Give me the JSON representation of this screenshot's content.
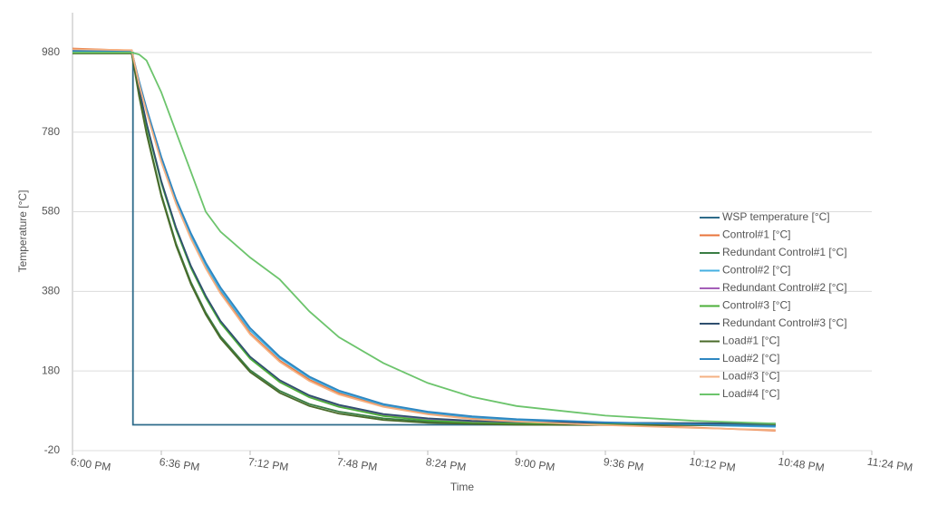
{
  "chart_data": {
    "type": "line",
    "y_label": "Temperature [°C]",
    "x_label": "Time",
    "x": [
      0,
      24,
      27,
      30,
      36,
      42,
      48,
      54,
      60,
      72,
      84,
      96,
      108,
      126,
      144,
      162,
      180,
      216,
      252,
      285
    ],
    "xlim": [
      0,
      324
    ],
    "xticks": [
      {
        "value": 0,
        "label": "6:00 PM"
      },
      {
        "value": 36,
        "label": "6:36 PM"
      },
      {
        "value": 72,
        "label": "7:12 PM"
      },
      {
        "value": 108,
        "label": "7:48 PM"
      },
      {
        "value": 144,
        "label": "8:24 PM"
      },
      {
        "value": 180,
        "label": "9:00 PM"
      },
      {
        "value": 216,
        "label": "9:36 PM"
      },
      {
        "value": 252,
        "label": "10:12 PM"
      },
      {
        "value": 288,
        "label": "10:48 PM"
      },
      {
        "value": 324,
        "label": "11:24 PM"
      }
    ],
    "ylim": [
      -20,
      1080
    ],
    "yticks": [
      -20,
      180,
      380,
      580,
      780,
      980
    ],
    "grid": true,
    "legend": "right",
    "series": [
      {
        "name": "WSP temperature [°C]",
        "color": "#2e6b8a",
        "x": [
          0,
          24.5,
          24.5,
          285
        ],
        "values": [
          980,
          980,
          45,
          45
        ]
      },
      {
        "name": "Control#1 [°C]",
        "color": "#e8743b",
        "values": [
          990,
          985,
          903,
          833,
          709,
          603,
          515,
          441,
          378,
          275,
          206,
          158,
          124,
          92,
          73,
          61,
          55,
          45,
          38,
          30
        ]
      },
      {
        "name": "Redundant Control#1 [°C]",
        "color": "#3a7d44",
        "values": [
          985,
          985,
          874,
          781,
          624,
          500,
          403,
          327,
          267,
          182,
          130,
          97,
          78,
          61,
          53,
          49,
          47,
          45,
          44,
          43
        ]
      },
      {
        "name": "Control#2 [°C]",
        "color": "#45b0e1",
        "values": [
          982,
          982,
          905,
          836,
          712,
          607,
          520,
          446,
          384,
          282,
          212,
          163,
          128,
          95,
          76,
          64,
          57,
          49,
          44,
          40
        ]
      },
      {
        "name": "Redundant Control#2 [°C]",
        "color": "#a45eb8",
        "values": [
          982,
          982,
          886,
          800,
          654,
          537,
          441,
          366,
          303,
          213,
          154,
          116,
          92,
          69,
          58,
          52,
          49,
          47,
          46,
          45
        ]
      },
      {
        "name": "Control#3 [°C]",
        "color": "#4caf3a",
        "values": [
          978,
          978,
          884,
          798,
          652,
          535,
          439,
          364,
          301,
          211,
          152,
          114,
          90,
          67,
          56,
          50,
          48,
          47,
          47,
          47
        ]
      },
      {
        "name": "Redundant Control#3 [°C]",
        "color": "#2f4f6f",
        "values": [
          985,
          985,
          889,
          803,
          657,
          540,
          444,
          369,
          306,
          216,
          157,
          119,
          95,
          72,
          61,
          55,
          52,
          50,
          49,
          48
        ]
      },
      {
        "name": "Load#1 [°C]",
        "color": "#4a6b2a",
        "values": [
          978,
          978,
          870,
          776,
          619,
          495,
          398,
          322,
          262,
          177,
          125,
          92,
          73,
          57,
          50,
          47,
          45,
          44,
          44,
          44
        ]
      },
      {
        "name": "Load#2 [°C]",
        "color": "#2e86c1",
        "values": [
          984,
          984,
          908,
          840,
          718,
          612,
          526,
          452,
          390,
          288,
          216,
          166,
          131,
          97,
          78,
          66,
          59,
          51,
          46,
          42
        ]
      },
      {
        "name": "Load#3 [°C]",
        "color": "#f4b183",
        "values": [
          988,
          986,
          900,
          830,
          705,
          600,
          512,
          438,
          375,
          272,
          203,
          155,
          121,
          90,
          71,
          59,
          53,
          44,
          37,
          32
        ]
      },
      {
        "name": "Load#4 [°C]",
        "color": "#6cc46c",
        "values": [
          980,
          980,
          975,
          960,
          880,
          780,
          680,
          580,
          530,
          465,
          410,
          330,
          265,
          200,
          150,
          115,
          92,
          68,
          55,
          48
        ]
      }
    ]
  }
}
